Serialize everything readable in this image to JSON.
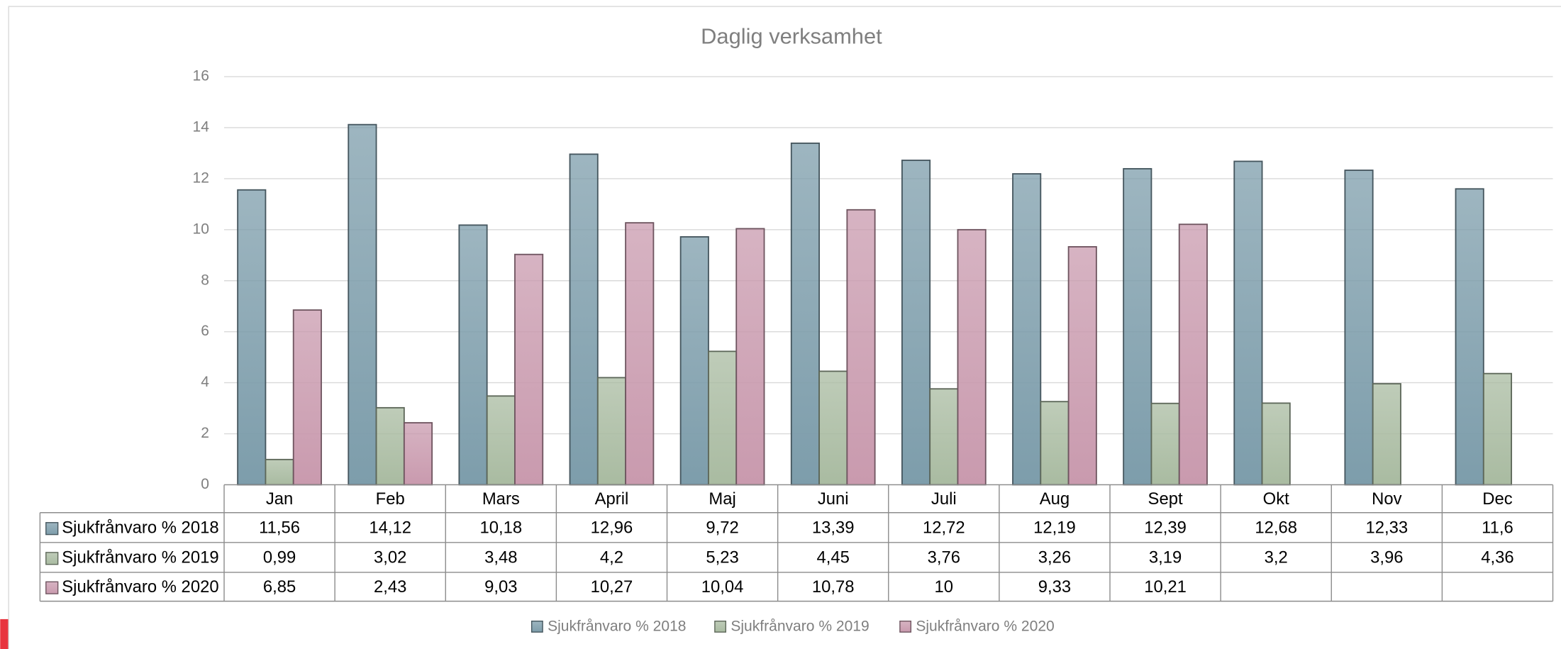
{
  "chart_data": {
    "type": "bar",
    "title": "Daglig verksamhet",
    "categories": [
      "Jan",
      "Feb",
      "Mars",
      "April",
      "Maj",
      "Juni",
      "Juli",
      "Aug",
      "Sept",
      "Okt",
      "Nov",
      "Dec"
    ],
    "series": [
      {
        "name": "Sjukfrånvaro % 2018",
        "color": "#7d9dab",
        "values": [
          11.56,
          14.12,
          10.18,
          12.96,
          9.72,
          13.39,
          12.72,
          12.19,
          12.39,
          12.68,
          12.33,
          11.6
        ],
        "value_labels": [
          "11,56",
          "14,12",
          "10,18",
          "12,96",
          "9,72",
          "13,39",
          "12,72",
          "12,19",
          "12,39",
          "12,68",
          "12,33",
          "11,6"
        ]
      },
      {
        "name": "Sjukfrånvaro % 2019",
        "color": "#a9bba1",
        "values": [
          0.99,
          3.02,
          3.48,
          4.2,
          5.23,
          4.45,
          3.76,
          3.26,
          3.19,
          3.2,
          3.96,
          4.36
        ],
        "value_labels": [
          "0,99",
          "3,02",
          "3,48",
          "4,2",
          "5,23",
          "4,45",
          "3,76",
          "3,26",
          "3,19",
          "3,2",
          "3,96",
          "4,36"
        ]
      },
      {
        "name": "Sjukfrånvaro % 2020",
        "color": "#c99aae",
        "values": [
          6.85,
          2.43,
          9.03,
          10.27,
          10.04,
          10.78,
          10,
          9.33,
          10.21,
          null,
          null,
          null
        ],
        "value_labels": [
          "6,85",
          "2,43",
          "9,03",
          "10,27",
          "10,04",
          "10,78",
          "10",
          "9,33",
          "10,21",
          null,
          null,
          null
        ]
      }
    ],
    "ylim": [
      0,
      16
    ],
    "yticks": [
      0,
      2,
      4,
      6,
      8,
      10,
      12,
      14,
      16
    ],
    "grid": true
  }
}
